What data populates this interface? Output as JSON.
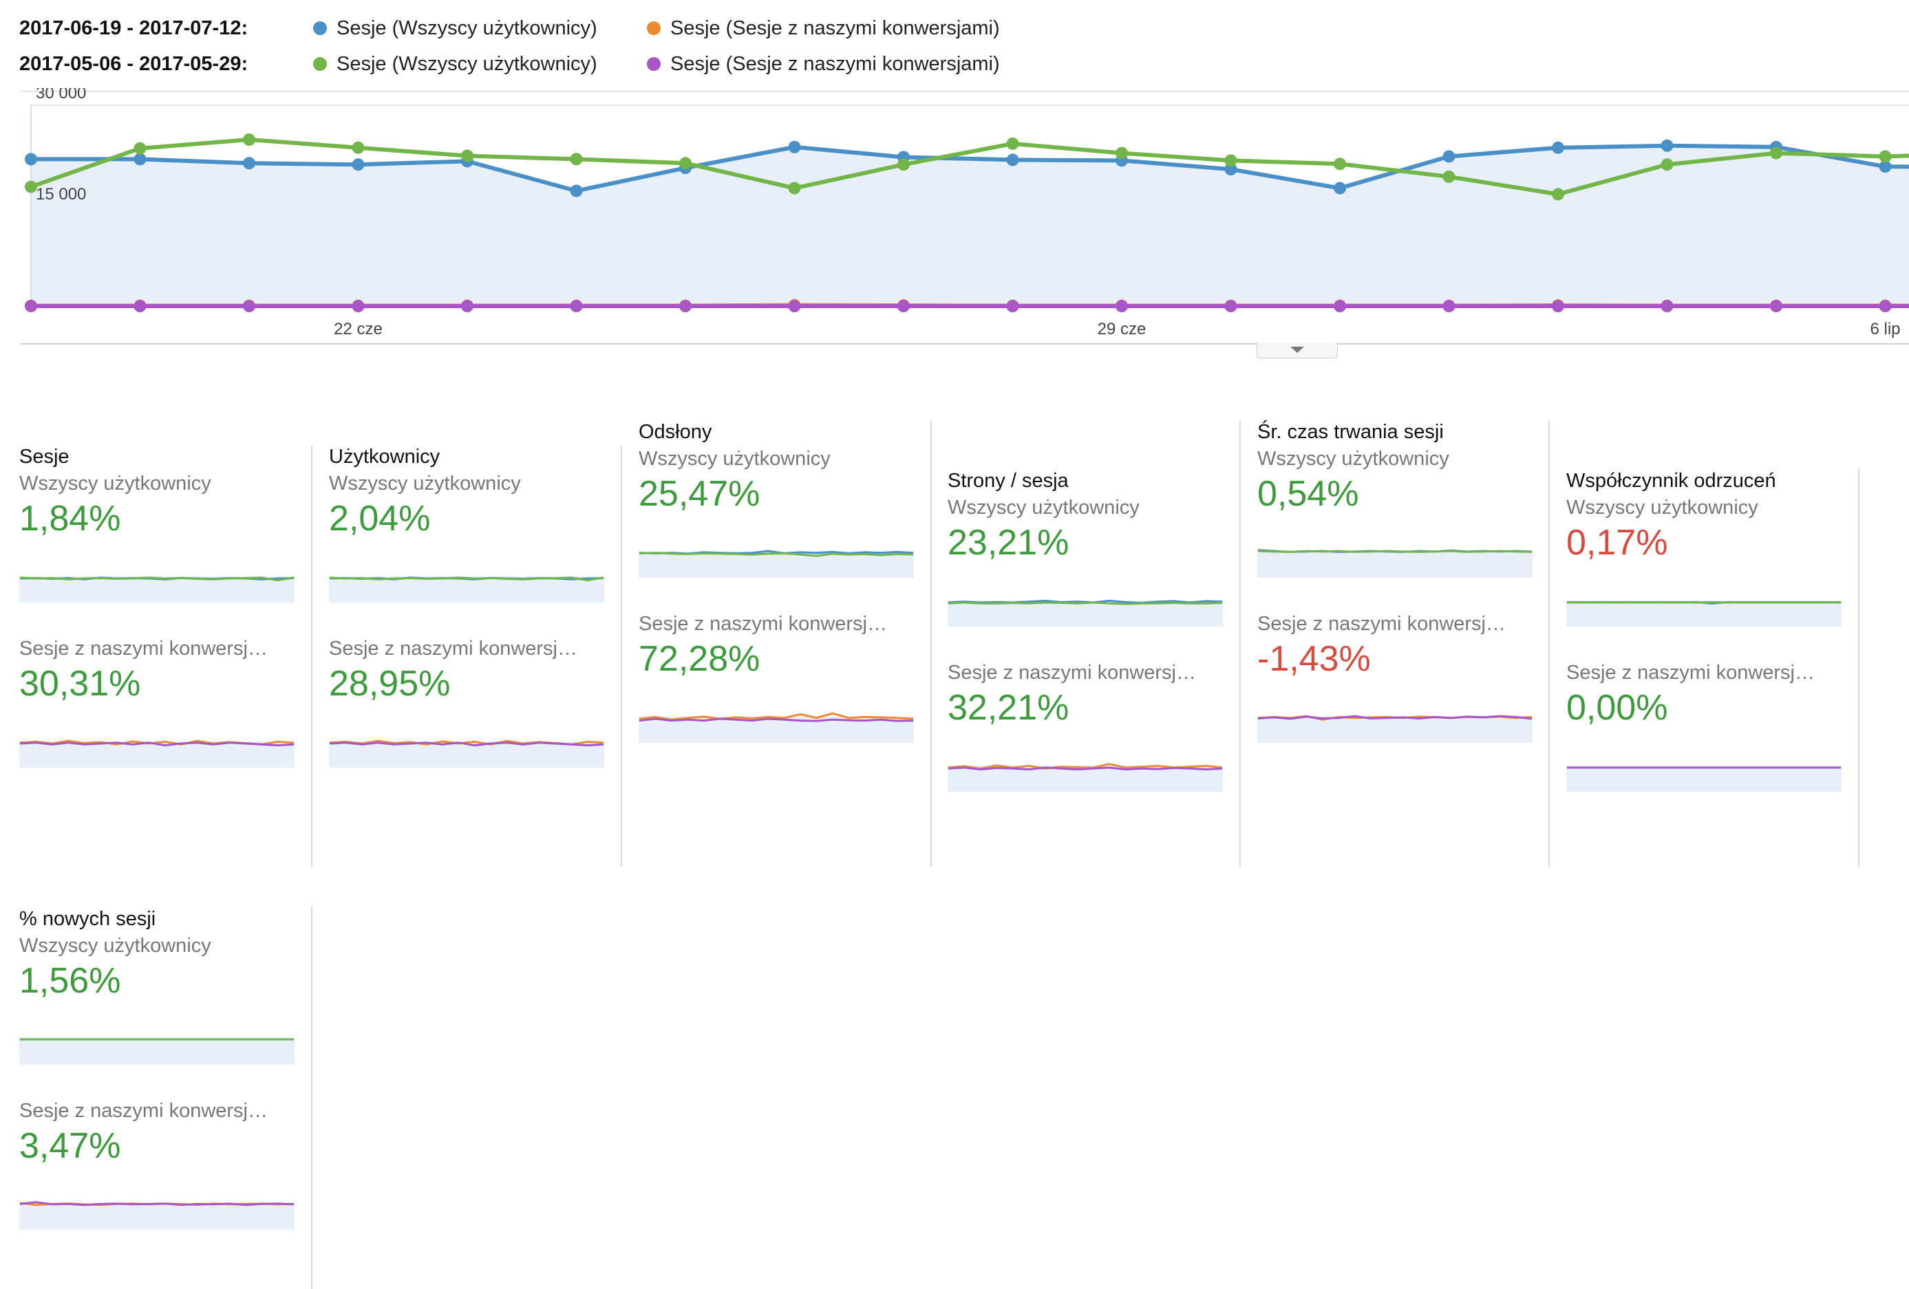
{
  "legend": [
    {
      "range": "2017-06-19 - 2017-07-12:",
      "items": [
        {
          "label": "Sesje (Wszyscy użytkownicy)",
          "color": "#4a90c8"
        },
        {
          "label": "Sesje (Sesje z naszymi konwersjami)",
          "color": "#f08a32"
        }
      ]
    },
    {
      "range": "2017-05-06 - 2017-05-29:",
      "items": [
        {
          "label": "Sesje (Wszyscy użytkownicy)",
          "color": "#72b64a"
        },
        {
          "label": "Sesje (Sesje z naszymi konwersjami)",
          "color": "#a855c8"
        }
      ]
    }
  ],
  "chart_data": {
    "type": "line",
    "y_tick_labels": [
      "30 000",
      "15 000"
    ],
    "y_ticks": [
      30000,
      15000
    ],
    "ylim": [
      0,
      30000
    ],
    "x_tick_labels": [
      {
        "label": "22 cze",
        "index": 3
      },
      {
        "label": "29 cze",
        "index": 10
      },
      {
        "label": "6 lip",
        "index": 17
      }
    ],
    "series": [
      {
        "color": "#4a90c8",
        "values": [
          22000,
          22000,
          21400,
          21200,
          21700,
          17300,
          20700,
          23800,
          22300,
          21900,
          21800,
          20500,
          17700,
          22400,
          23700,
          24000,
          23800,
          20900,
          20800
        ]
      },
      {
        "color": "#72b64a",
        "values": [
          17900,
          23600,
          24900,
          23700,
          22500,
          22000,
          21400,
          17700,
          21200,
          24300,
          22900,
          21800,
          21300,
          19400,
          16800,
          21200,
          22900,
          22400,
          22900
        ]
      },
      {
        "color": "#f08a32",
        "values": [
          250,
          250,
          250,
          250,
          250,
          250,
          250,
          350,
          300,
          250,
          250,
          250,
          250,
          250,
          300,
          250,
          250,
          250,
          250
        ]
      },
      {
        "color": "#a855c8",
        "values": [
          200,
          200,
          200,
          200,
          200,
          200,
          200,
          200,
          200,
          200,
          200,
          200,
          200,
          200,
          200,
          200,
          200,
          200,
          200
        ]
      }
    ]
  },
  "cards": [
    {
      "title": "Sesje",
      "label1": "Wszyscy użytkownicy",
      "value1": "1,84%",
      "label2": "Sesje z naszymi konwersj…",
      "value2": "30,31%",
      "spark1": [
        [
          0.5,
          0.48,
          0.52,
          0.48,
          0.55,
          0.45,
          0.5,
          0.48,
          0.5,
          0.55,
          0.47,
          0.5,
          0.52,
          0.48,
          0.5,
          0.55,
          0.5,
          0.48
        ],
        [
          0.45,
          0.5,
          0.48,
          0.55,
          0.5,
          0.48,
          0.52,
          0.5,
          0.45,
          0.5,
          0.48,
          0.52,
          0.55,
          0.5,
          0.48,
          0.45,
          0.6,
          0.45
        ]
      ],
      "spark2": [
        [
          0.45,
          0.4,
          0.5,
          0.35,
          0.48,
          0.42,
          0.55,
          0.38,
          0.5,
          0.4,
          0.55,
          0.35,
          0.5,
          0.42,
          0.48,
          0.55,
          0.4,
          0.45
        ],
        [
          0.5,
          0.45,
          0.55,
          0.45,
          0.55,
          0.5,
          0.45,
          0.55,
          0.45,
          0.6,
          0.5,
          0.45,
          0.55,
          0.45,
          0.5,
          0.55,
          0.6,
          0.55
        ]
      ]
    },
    {
      "title": "Użytkownicy",
      "label1": "Wszyscy użytkownicy",
      "value1": "2,04%",
      "label2": "Sesje z naszymi konwersj…",
      "value2": "28,95%",
      "spark1": [
        [
          0.5,
          0.48,
          0.52,
          0.48,
          0.55,
          0.45,
          0.5,
          0.48,
          0.5,
          0.55,
          0.47,
          0.5,
          0.52,
          0.48,
          0.5,
          0.55,
          0.5,
          0.48
        ],
        [
          0.45,
          0.5,
          0.48,
          0.55,
          0.5,
          0.48,
          0.52,
          0.5,
          0.45,
          0.5,
          0.48,
          0.52,
          0.55,
          0.5,
          0.48,
          0.45,
          0.6,
          0.45
        ]
      ],
      "spark2": [
        [
          0.45,
          0.4,
          0.5,
          0.35,
          0.48,
          0.42,
          0.55,
          0.38,
          0.5,
          0.4,
          0.55,
          0.35,
          0.5,
          0.42,
          0.48,
          0.55,
          0.4,
          0.45
        ],
        [
          0.5,
          0.45,
          0.55,
          0.45,
          0.55,
          0.5,
          0.45,
          0.55,
          0.45,
          0.6,
          0.5,
          0.45,
          0.55,
          0.45,
          0.5,
          0.55,
          0.6,
          0.55
        ]
      ]
    },
    {
      "title": "Odsłony",
      "label1": "Wszyscy użytkownicy",
      "value1": "25,47%",
      "label2": "Sesje z naszymi konwersj…",
      "value2": "72,28%",
      "spark1": [
        [
          0.45,
          0.48,
          0.45,
          0.5,
          0.42,
          0.45,
          0.48,
          0.45,
          0.35,
          0.48,
          0.42,
          0.45,
          0.4,
          0.48,
          0.42,
          0.45,
          0.4,
          0.45
        ],
        [
          0.48,
          0.45,
          0.5,
          0.52,
          0.48,
          0.5,
          0.52,
          0.55,
          0.5,
          0.48,
          0.55,
          0.62,
          0.5,
          0.55,
          0.52,
          0.58,
          0.52,
          0.55
        ]
      ],
      "spark2": [
        [
          0.5,
          0.4,
          0.55,
          0.45,
          0.38,
          0.5,
          0.42,
          0.48,
          0.4,
          0.45,
          0.25,
          0.45,
          0.2,
          0.45,
          0.4,
          0.42,
          0.45,
          0.5
        ],
        [
          0.6,
          0.5,
          0.6,
          0.55,
          0.6,
          0.5,
          0.55,
          0.6,
          0.5,
          0.55,
          0.6,
          0.62,
          0.55,
          0.58,
          0.6,
          0.55,
          0.62,
          0.6
        ]
      ]
    },
    {
      "title": "Strony / sesja",
      "label1": "Wszyscy użytkownicy",
      "value1": "23,21%",
      "label2": "Sesje z naszymi konwersj…",
      "value2": "32,21%",
      "spark1": [
        [
          0.5,
          0.45,
          0.5,
          0.48,
          0.5,
          0.45,
          0.4,
          0.48,
          0.45,
          0.5,
          0.4,
          0.48,
          0.52,
          0.45,
          0.42,
          0.5,
          0.42,
          0.45
        ],
        [
          0.55,
          0.5,
          0.55,
          0.55,
          0.52,
          0.55,
          0.5,
          0.52,
          0.55,
          0.5,
          0.55,
          0.58,
          0.55,
          0.55,
          0.52,
          0.55,
          0.55,
          0.52
        ]
      ],
      "spark2": [
        [
          0.5,
          0.42,
          0.55,
          0.38,
          0.5,
          0.4,
          0.55,
          0.45,
          0.48,
          0.5,
          0.3,
          0.5,
          0.45,
          0.4,
          0.5,
          0.45,
          0.4,
          0.5
        ],
        [
          0.55,
          0.5,
          0.6,
          0.52,
          0.55,
          0.6,
          0.5,
          0.55,
          0.6,
          0.55,
          0.5,
          0.6,
          0.55,
          0.58,
          0.52,
          0.55,
          0.6,
          0.55
        ]
      ]
    },
    {
      "title": "Śr. czas trwania sesji",
      "label1": "Wszyscy użytkownicy",
      "value1": "0,54%",
      "label2": "Sesje z naszymi konwersj…",
      "value2": "-1,43%",
      "spark1": [
        [
          0.3,
          0.35,
          0.4,
          0.38,
          0.35,
          0.4,
          0.38,
          0.35,
          0.38,
          0.4,
          0.35,
          0.38,
          0.32,
          0.38,
          0.35,
          0.38,
          0.35,
          0.38
        ],
        [
          0.35,
          0.38,
          0.4,
          0.35,
          0.38,
          0.35,
          0.4,
          0.38,
          0.35,
          0.38,
          0.4,
          0.38,
          0.35,
          0.4,
          0.38,
          0.35,
          0.38,
          0.4
        ]
      ],
      "spark2": [
        [
          0.45,
          0.4,
          0.45,
          0.35,
          0.55,
          0.4,
          0.45,
          0.42,
          0.4,
          0.45,
          0.38,
          0.42,
          0.45,
          0.4,
          0.42,
          0.38,
          0.45,
          0.4
        ],
        [
          0.48,
          0.42,
          0.5,
          0.38,
          0.48,
          0.45,
          0.35,
          0.48,
          0.45,
          0.42,
          0.48,
          0.4,
          0.45,
          0.38,
          0.42,
          0.35,
          0.4,
          0.5
        ]
      ]
    },
    {
      "title": "Współczynnik odrzuceń",
      "label1": "Wszyscy użytkownicy",
      "value1": "0,17%",
      "label2": "Sesje z naszymi konwersj…",
      "value2": "0,00%",
      "spark1": [
        [
          0.48,
          0.5,
          0.48,
          0.5,
          0.48,
          0.5,
          0.48,
          0.5,
          0.48,
          0.55,
          0.48,
          0.5,
          0.48,
          0.5,
          0.48,
          0.5,
          0.48,
          0.5
        ],
        [
          0.5,
          0.48,
          0.5,
          0.48,
          0.5,
          0.48,
          0.5,
          0.48,
          0.5,
          0.48,
          0.5,
          0.48,
          0.5,
          0.48,
          0.5,
          0.48,
          0.5,
          0.48
        ]
      ],
      "spark2": [
        [
          0.5,
          0.5,
          0.5,
          0.5,
          0.5,
          0.5,
          0.5,
          0.5,
          0.5,
          0.5,
          0.5,
          0.5,
          0.5,
          0.5,
          0.5,
          0.5,
          0.5,
          0.5
        ],
        [
          0.5,
          0.5,
          0.5,
          0.5,
          0.5,
          0.5,
          0.5,
          0.5,
          0.5,
          0.5,
          0.5,
          0.5,
          0.5,
          0.5,
          0.5,
          0.5,
          0.5,
          0.5
        ]
      ]
    },
    {
      "title": "% nowych sesji",
      "label1": "Wszyscy użytkownicy",
      "value1": "1,56%",
      "label2": "Sesje z naszymi konwersj…",
      "value2": "3,47%",
      "spark1": [
        [
          0.42,
          0.42,
          0.42,
          0.42,
          0.42,
          0.42,
          0.42,
          0.42,
          0.42,
          0.42,
          0.42,
          0.42,
          0.42,
          0.42,
          0.42,
          0.42,
          0.42,
          0.42
        ],
        [
          0.43,
          0.43,
          0.43,
          0.43,
          0.43,
          0.43,
          0.43,
          0.43,
          0.43,
          0.43,
          0.43,
          0.43,
          0.43,
          0.43,
          0.43,
          0.43,
          0.43,
          0.43
        ]
      ],
      "spark2": [
        [
          0.35,
          0.45,
          0.4,
          0.38,
          0.42,
          0.45,
          0.4,
          0.38,
          0.42,
          0.38,
          0.4,
          0.45,
          0.38,
          0.42,
          0.4,
          0.38,
          0.42,
          0.4
        ],
        [
          0.4,
          0.3,
          0.42,
          0.4,
          0.45,
          0.4,
          0.38,
          0.42,
          0.4,
          0.38,
          0.45,
          0.4,
          0.42,
          0.38,
          0.45,
          0.4,
          0.38,
          0.42
        ]
      ]
    }
  ],
  "value_status": {
    "positive_color": "#3c9c3c",
    "negative_color": "#d84b3e"
  },
  "toggle_icon": "chevron-down-icon"
}
